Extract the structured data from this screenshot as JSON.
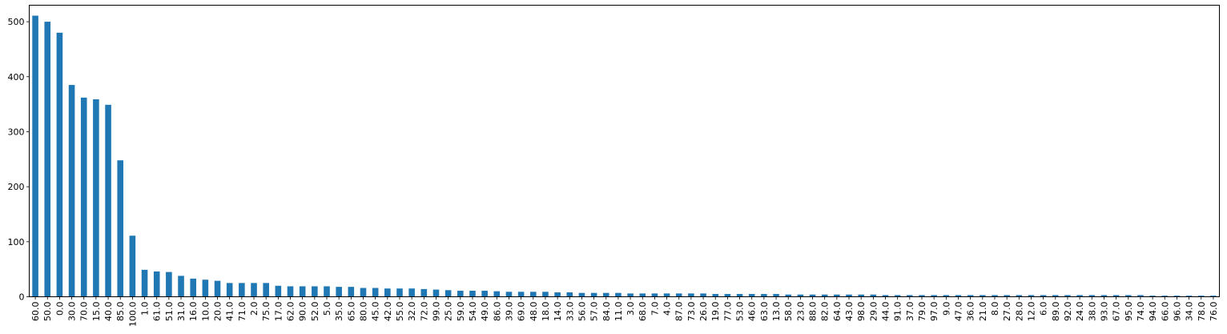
{
  "chart_data": {
    "type": "bar",
    "title": "",
    "xlabel": "",
    "ylabel": "",
    "ylim": [
      0,
      530
    ],
    "yticks": [
      0,
      100,
      200,
      300,
      400,
      500
    ],
    "bar_color": "#1f77b4",
    "grid": false,
    "categories": [
      "60.0",
      "50.0",
      "0.0",
      "30.0",
      "70.0",
      "15.0",
      "40.0",
      "85.0",
      "100.0",
      "1.0",
      "61.0",
      "51.0",
      "31.0",
      "16.0",
      "10.0",
      "20.0",
      "41.0",
      "71.0",
      "2.0",
      "75.0",
      "17.0",
      "62.0",
      "90.0",
      "52.0",
      "5.0",
      "35.0",
      "65.0",
      "80.0",
      "45.0",
      "42.0",
      "55.0",
      "32.0",
      "72.0",
      "99.0",
      "25.0",
      "59.0",
      "54.0",
      "49.0",
      "86.0",
      "39.0",
      "69.0",
      "48.0",
      "18.0",
      "14.0",
      "33.0",
      "56.0",
      "57.0",
      "84.0",
      "11.0",
      "3.0",
      "68.0",
      "7.0",
      "4.0",
      "87.0",
      "73.0",
      "26.0",
      "19.0",
      "77.0",
      "53.0",
      "46.0",
      "63.0",
      "13.0",
      "58.0",
      "23.0",
      "88.0",
      "82.0",
      "64.0",
      "43.0",
      "98.0",
      "29.0",
      "44.0",
      "91.0",
      "37.0",
      "79.0",
      "97.0",
      "9.0",
      "47.0",
      "36.0",
      "21.0",
      "8.0",
      "27.0",
      "28.0",
      "12.0",
      "6.0",
      "89.0",
      "92.0",
      "24.0",
      "38.0",
      "93.0",
      "67.0",
      "95.0",
      "74.0",
      "94.0",
      "66.0",
      "96.0",
      "34.0",
      "78.0",
      "76.0"
    ],
    "values": [
      511,
      500,
      480,
      385,
      362,
      359,
      349,
      248,
      111,
      49,
      46,
      45,
      38,
      33,
      31,
      29,
      25,
      25,
      25,
      25,
      20,
      19,
      19,
      19,
      19,
      18,
      18,
      16,
      16,
      15,
      15,
      15,
      14,
      13,
      12,
      11,
      11,
      11,
      10,
      9,
      9,
      9,
      9,
      8,
      8,
      7,
      7,
      7,
      7,
      6,
      6,
      6,
      6,
      6,
      6,
      6,
      5,
      5,
      5,
      5,
      5,
      5,
      4,
      4,
      4,
      4,
      4,
      4,
      4,
      4,
      3,
      3,
      3,
      3,
      3,
      3,
      3,
      3,
      3,
      3,
      3,
      3,
      3,
      3,
      3,
      3,
      3,
      3,
      3,
      3,
      3,
      3,
      2,
      2,
      2,
      2,
      2,
      2
    ]
  }
}
